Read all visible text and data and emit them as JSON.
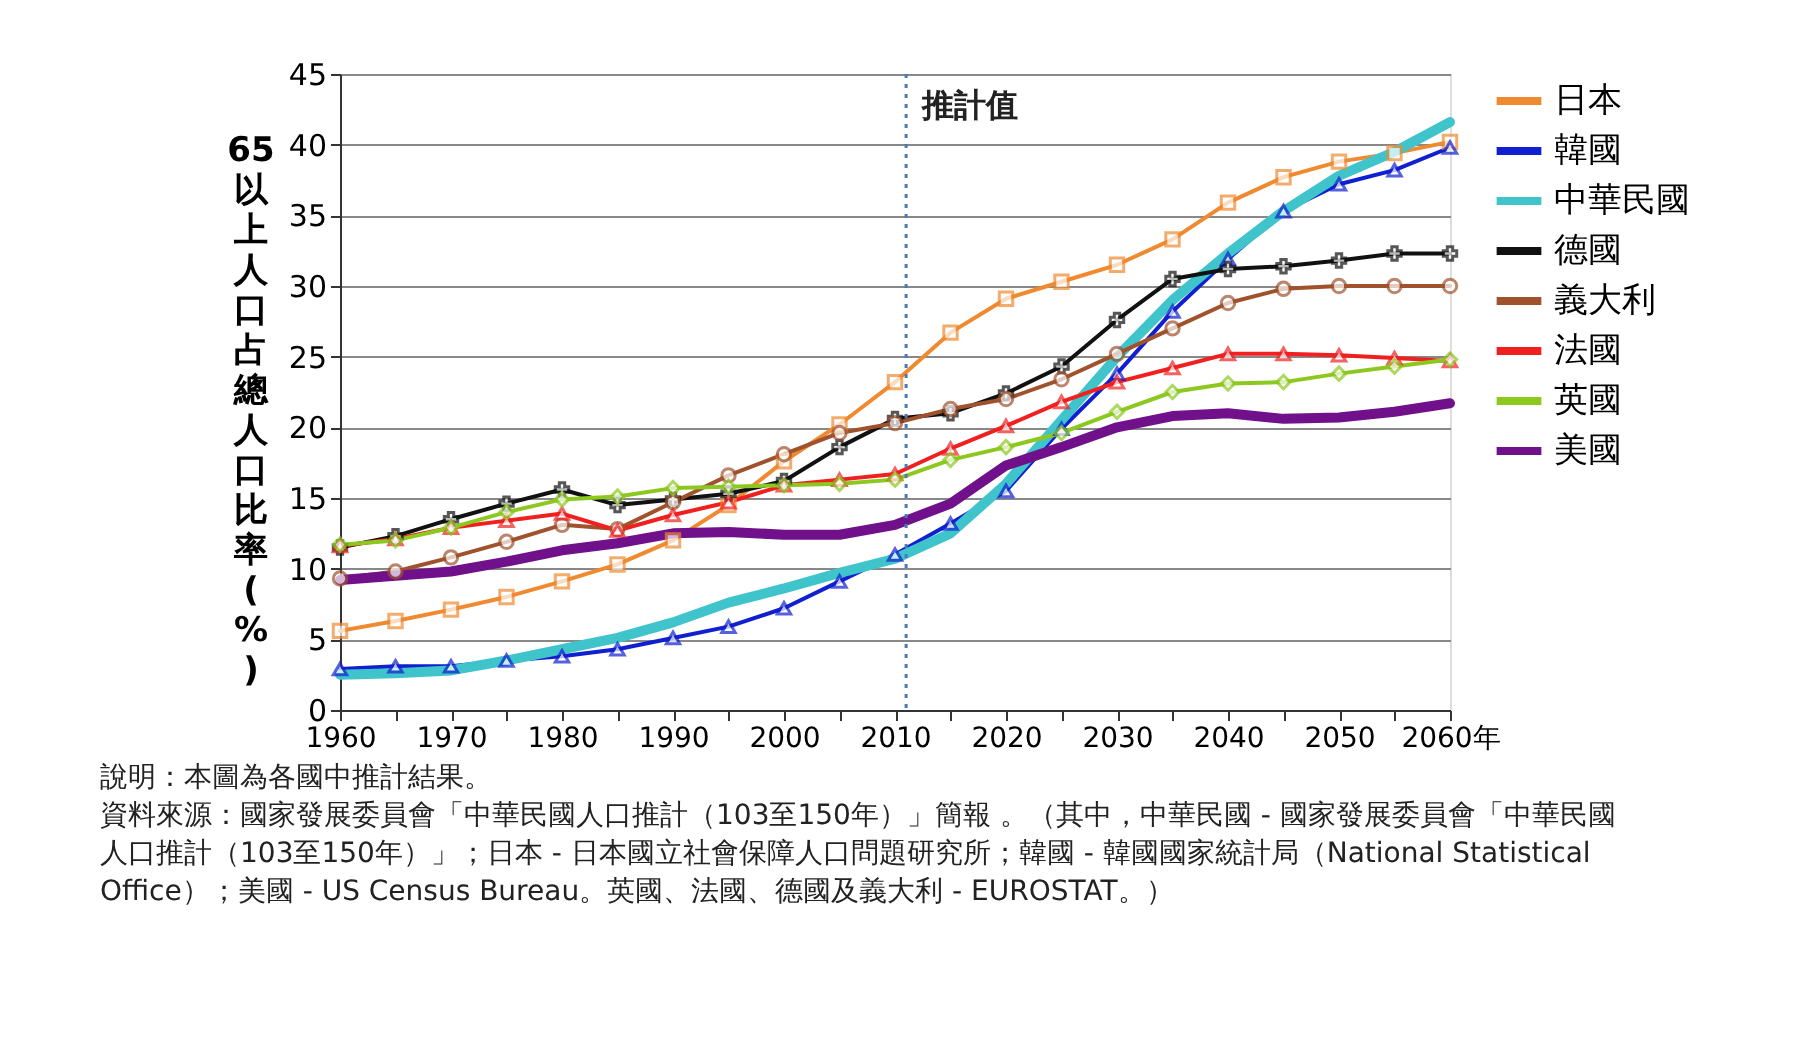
{
  "chart_data": {
    "type": "line",
    "ylabel": "65以上人口占總人口比率(%)",
    "x": [
      1960,
      1965,
      1970,
      1975,
      1980,
      1985,
      1990,
      1995,
      2000,
      2005,
      2010,
      2015,
      2020,
      2025,
      2030,
      2035,
      2040,
      2045,
      2050,
      2055,
      2060
    ],
    "xlim": [
      1960,
      2060
    ],
    "xticks": [
      1960,
      {
        "value": 1965,
        "label": null
      },
      1970,
      {
        "value": 1975,
        "label": null
      },
      1980,
      {
        "value": 1985,
        "label": null
      },
      1990,
      {
        "value": 1995,
        "label": null
      },
      2000,
      {
        "value": 2005,
        "label": null
      },
      2010,
      {
        "value": 2015,
        "label": null
      },
      2020,
      {
        "value": 2025,
        "label": null
      },
      2030,
      {
        "value": 2035,
        "label": null
      },
      2040,
      {
        "value": 2045,
        "label": null
      },
      2050,
      {
        "value": 2055,
        "label": null
      },
      {
        "value": 2060,
        "label": "2060年"
      }
    ],
    "ylim": [
      0,
      45
    ],
    "yticks": [
      0,
      5,
      10,
      15,
      20,
      25,
      30,
      35,
      40,
      45
    ],
    "grid": "y",
    "legend": "right",
    "series": [
      {
        "name": "日本",
        "color": "#f08a30",
        "marker": "square",
        "values": [
          5.6,
          6.3,
          7.1,
          8.0,
          9.1,
          10.3,
          12.0,
          14.5,
          17.6,
          20.2,
          23.2,
          26.7,
          29.1,
          30.3,
          31.5,
          33.3,
          35.9,
          37.7,
          38.8,
          39.4,
          40.2
        ]
      },
      {
        "name": "韓國",
        "color": "#1020d0",
        "marker": "triangle",
        "values": [
          2.9,
          3.1,
          3.1,
          3.5,
          3.8,
          4.3,
          5.1,
          5.9,
          7.2,
          9.1,
          11.0,
          13.2,
          15.5,
          19.9,
          23.8,
          28.2,
          31.9,
          35.3,
          37.2,
          38.2,
          39.8
        ]
      },
      {
        "name": "中華民國",
        "color": "#40c4cc",
        "marker": "none",
        "values": [
          2.5,
          2.6,
          2.8,
          3.5,
          4.3,
          5.1,
          6.2,
          7.6,
          8.6,
          9.7,
          10.7,
          12.5,
          16.0,
          20.5,
          25.0,
          29.0,
          32.3,
          35.3,
          37.8,
          39.5,
          41.6
        ]
      },
      {
        "name": "德國",
        "color": "#111111",
        "marker": "cross",
        "values": [
          11.5,
          12.3,
          13.5,
          14.6,
          15.6,
          14.5,
          14.9,
          15.3,
          16.2,
          18.6,
          20.6,
          21.0,
          22.4,
          24.3,
          27.6,
          30.5,
          31.2,
          31.4,
          31.8,
          32.3,
          32.3
        ]
      },
      {
        "name": "義大利",
        "color": "#a0522d",
        "marker": "circle",
        "values": [
          9.3,
          9.8,
          10.8,
          11.9,
          13.1,
          12.8,
          14.7,
          16.6,
          18.1,
          19.6,
          20.3,
          21.3,
          22.0,
          23.4,
          25.2,
          27.0,
          28.8,
          29.8,
          30.0,
          30.0,
          30.0
        ]
      },
      {
        "name": "法國",
        "color": "#f02020",
        "marker": "triangle",
        "values": [
          11.6,
          12.1,
          12.9,
          13.4,
          13.9,
          12.7,
          13.8,
          14.7,
          15.9,
          16.3,
          16.7,
          18.5,
          20.1,
          21.8,
          23.2,
          24.2,
          25.2,
          25.2,
          25.1,
          24.9,
          24.7
        ]
      },
      {
        "name": "英國",
        "color": "#8cc820",
        "marker": "diamond",
        "values": [
          11.7,
          12.0,
          12.9,
          14.0,
          14.9,
          15.1,
          15.7,
          15.8,
          15.9,
          16.0,
          16.3,
          17.7,
          18.6,
          19.6,
          21.1,
          22.5,
          23.1,
          23.2,
          23.8,
          24.3,
          24.8
        ]
      },
      {
        "name": "美國",
        "color": "#70108a",
        "marker": "none",
        "values": [
          9.2,
          9.5,
          9.8,
          10.5,
          11.3,
          11.8,
          12.5,
          12.6,
          12.4,
          12.4,
          13.1,
          14.6,
          17.3,
          18.6,
          20.0,
          20.8,
          21.0,
          20.6,
          20.7,
          21.1,
          21.7
        ]
      }
    ],
    "ref_lines": [
      {
        "axis": "x",
        "value": 2011,
        "label": "推計值",
        "color": "#4a7ab5",
        "line_style": "dotted"
      }
    ],
    "annotations": [
      "說明：本圖為各國中推計結果。",
      "資料來源：國家發展委員會「中華民國人口推計（103至150年）」簡報 。（其中，中華民國 - 國家發展委員會「中華民國人口推計（103至150年）」；日本 - 日本國立社會保障人口問題研究所；韓國 - 韓國國家統計局（National Statistical Office）；美國 - US Census Bureau。英國、法國、德國及義大利 - EUROSTAT。）"
    ]
  }
}
